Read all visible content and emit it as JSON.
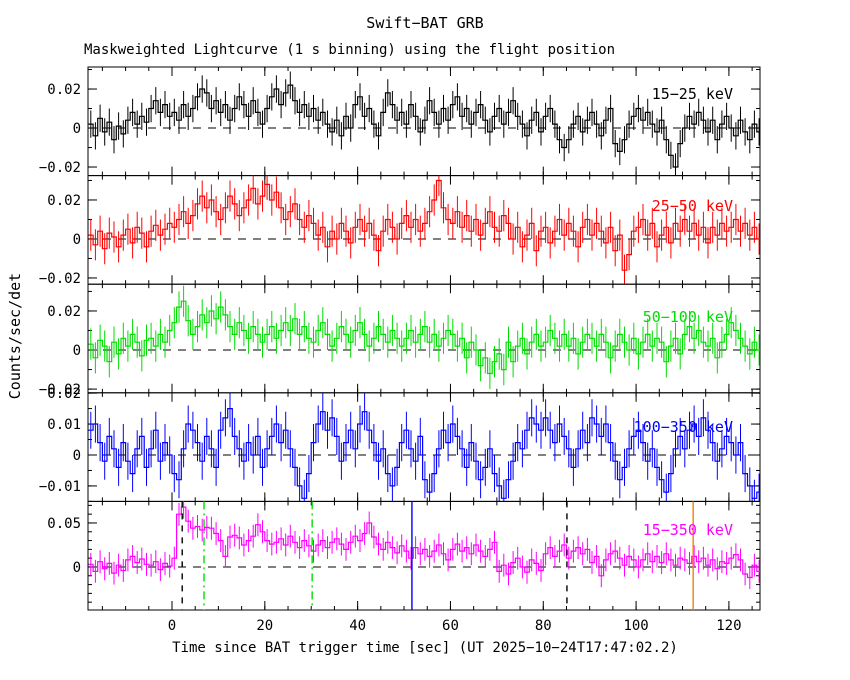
{
  "title": "Swift−BAT GRB",
  "subtitle": "Maskweighted Lightcurve (1 s binning) using the flight position",
  "xlabel": "Time since BAT trigger time [sec] (UT 2025−10−24T17:47:02.2)",
  "ylabel": "Counts/sec/det",
  "chart_data": {
    "type": "line",
    "style": "histogram-step-with-error-bars",
    "binning_sec": 1,
    "x_start": -18,
    "xlim": [
      -18.1,
      126.7
    ],
    "xticks_major": [
      0,
      20,
      40,
      60,
      80,
      100,
      120
    ],
    "xtick_labels": [
      "0",
      "20",
      "40",
      "60",
      "80",
      "100",
      "120"
    ],
    "xtick_minor_step": 5,
    "value_unit": "counts/sec/det",
    "value_scale": 0.001,
    "panels": [
      {
        "label": "15−25 keV",
        "color": "#000000",
        "ylim": [
          -0.0244,
          0.0313
        ],
        "yticks": [
          {
            "v": -0.02,
            "label": "−0.02"
          },
          {
            "v": 0,
            "label": "0"
          },
          {
            "v": 0.02,
            "label": "0.02"
          }
        ],
        "ytick_minor_step": 0.01,
        "err_milli": 7,
        "values_milli": [
          2,
          -4,
          5,
          -2,
          3,
          -6,
          1,
          -3,
          4,
          8,
          2,
          6,
          3,
          10,
          14,
          8,
          12,
          6,
          8,
          4,
          12,
          6,
          10,
          16,
          20,
          18,
          10,
          14,
          8,
          12,
          4,
          10,
          16,
          12,
          6,
          14,
          8,
          2,
          10,
          16,
          20,
          12,
          18,
          22,
          14,
          8,
          12,
          6,
          10,
          4,
          8,
          2,
          -2,
          4,
          -4,
          6,
          0,
          12,
          16,
          6,
          10,
          2,
          -4,
          8,
          18,
          12,
          4,
          8,
          2,
          12,
          6,
          -2,
          4,
          14,
          8,
          2,
          10,
          4,
          12,
          16,
          6,
          10,
          2,
          8,
          12,
          4,
          -2,
          6,
          10,
          2,
          8,
          14,
          6,
          2,
          -4,
          4,
          8,
          -2,
          6,
          10,
          2,
          -6,
          -10,
          -6,
          2,
          6,
          -2,
          4,
          8,
          2,
          -4,
          4,
          10,
          -8,
          -12,
          -6,
          2,
          6,
          10,
          4,
          8,
          2,
          -2,
          4,
          -6,
          -14,
          -20,
          -8,
          0,
          6,
          2,
          8,
          4,
          -2,
          4,
          -6,
          2,
          6,
          0,
          -4,
          4,
          -2,
          -6,
          2,
          -2
        ]
      },
      {
        "label": "25−50 keV",
        "color": "#ff0000",
        "ylim": [
          -0.0232,
          0.0325
        ],
        "yticks": [
          {
            "v": -0.02,
            "label": "−0.02"
          },
          {
            "v": 0,
            "label": "0"
          },
          {
            "v": 0.02,
            "label": "0.02"
          }
        ],
        "ytick_minor_step": 0.01,
        "err_milli": 8,
        "values_milli": [
          2,
          -3,
          4,
          -5,
          3,
          1,
          -4,
          2,
          5,
          -2,
          6,
          3,
          -4,
          4,
          7,
          2,
          5,
          8,
          6,
          10,
          14,
          8,
          12,
          18,
          22,
          16,
          20,
          14,
          10,
          16,
          22,
          18,
          12,
          16,
          20,
          26,
          18,
          22,
          28,
          20,
          24,
          16,
          10,
          14,
          18,
          10,
          6,
          12,
          8,
          2,
          6,
          -4,
          4,
          0,
          8,
          4,
          -2,
          6,
          10,
          4,
          8,
          2,
          -6,
          4,
          10,
          6,
          0,
          8,
          12,
          6,
          10,
          4,
          8,
          14,
          20,
          30,
          16,
          10,
          8,
          14,
          6,
          12,
          4,
          10,
          2,
          8,
          14,
          6,
          4,
          12,
          8,
          0,
          6,
          -4,
          2,
          8,
          -6,
          4,
          6,
          -2,
          4,
          10,
          2,
          8,
          4,
          -4,
          6,
          10,
          2,
          8,
          4,
          -2,
          6,
          -6,
          2,
          -16,
          -8,
          4,
          6,
          10,
          2,
          8,
          -4,
          2,
          6,
          -2,
          8,
          4,
          10,
          4,
          8,
          2,
          6,
          -2,
          6,
          2,
          8,
          4,
          6,
          10,
          4,
          8,
          2,
          6,
          0
        ]
      },
      {
        "label": "50−100 keV",
        "color": "#00dd00",
        "ylim": [
          -0.0219,
          0.0337
        ],
        "yticks": [
          {
            "v": -0.02,
            "label": "−0.02"
          },
          {
            "v": 0,
            "label": "0"
          },
          {
            "v": 0.02,
            "label": "0.02"
          }
        ],
        "ytick_minor_step": 0.01,
        "err_milli": 8,
        "values_milli": [
          3,
          -4,
          5,
          2,
          -6,
          4,
          -2,
          6,
          2,
          8,
          4,
          -3,
          5,
          6,
          2,
          8,
          4,
          10,
          14,
          22,
          25,
          15,
          8,
          12,
          18,
          14,
          20,
          16,
          22,
          18,
          12,
          8,
          14,
          10,
          6,
          12,
          8,
          4,
          8,
          12,
          6,
          10,
          14,
          10,
          16,
          8,
          12,
          6,
          4,
          10,
          14,
          8,
          2,
          6,
          12,
          8,
          4,
          10,
          14,
          8,
          2,
          6,
          12,
          8,
          4,
          10,
          6,
          2,
          6,
          10,
          4,
          8,
          12,
          4,
          8,
          2,
          6,
          10,
          8,
          2,
          6,
          -4,
          4,
          0,
          -8,
          -4,
          -12,
          -6,
          -2,
          -10,
          4,
          -6,
          2,
          6,
          -2,
          4,
          8,
          2,
          4,
          10,
          6,
          2,
          8,
          2,
          6,
          -2,
          4,
          8,
          6,
          2,
          8,
          4,
          -4,
          2,
          8,
          4,
          0,
          6,
          -2,
          4,
          8,
          2,
          6,
          4,
          -6,
          2,
          6,
          -2,
          8,
          12,
          6,
          10,
          4,
          2,
          6,
          -4,
          4,
          8,
          14,
          10,
          6,
          2,
          -2,
          4,
          0
        ]
      },
      {
        "label": "100−350 keV",
        "color": "#0000ff",
        "ylim": [
          -0.015,
          0.0201
        ],
        "yticks": [
          {
            "v": -0.01,
            "label": "−0.01"
          },
          {
            "v": 0,
            "label": "0"
          },
          {
            "v": 0.01,
            "label": "0.01"
          },
          {
            "v": 0.02,
            "label": "0.02"
          }
        ],
        "ytick_minor_step": 0.005,
        "err_milli": 6,
        "values_milli": [
          8,
          10,
          4,
          -2,
          6,
          2,
          -4,
          4,
          -2,
          -6,
          2,
          6,
          -4,
          2,
          8,
          -2,
          4,
          0,
          -6,
          -8,
          2,
          10,
          8,
          4,
          -2,
          6,
          2,
          -4,
          8,
          12,
          15,
          6,
          2,
          -2,
          4,
          0,
          6,
          -4,
          2,
          6,
          10,
          4,
          8,
          2,
          -4,
          -10,
          -14,
          -6,
          4,
          10,
          14,
          8,
          12,
          6,
          -2,
          4,
          8,
          2,
          10,
          14,
          8,
          4,
          -2,
          2,
          -6,
          -10,
          -4,
          4,
          8,
          2,
          -2,
          6,
          -8,
          -12,
          -6,
          2,
          8,
          4,
          10,
          6,
          2,
          -4,
          4,
          -2,
          -8,
          -4,
          2,
          -6,
          -10,
          -14,
          -8,
          -2,
          4,
          2,
          8,
          12,
          10,
          8,
          12,
          8,
          4,
          10,
          6,
          2,
          -4,
          2,
          8,
          4,
          12,
          10,
          6,
          10,
          4,
          -2,
          -8,
          -4,
          2,
          6,
          8,
          4,
          -2,
          2,
          -4,
          -8,
          -12,
          -6,
          2,
          6,
          2,
          8,
          10,
          6,
          12,
          8,
          4,
          -2,
          2,
          6,
          4,
          0,
          4,
          -6,
          -10,
          -14,
          -12
        ]
      },
      {
        "label": "15−350 keV",
        "color": "#ff00ff",
        "ylim": [
          -0.0489,
          0.0745
        ],
        "yticks": [
          {
            "v": 0,
            "label": "0"
          },
          {
            "v": 0.05,
            "label": "0.05"
          }
        ],
        "ytick_minor_step": 0.01,
        "err_milli": 13,
        "values_milli": [
          3,
          -5,
          6,
          -2,
          4,
          -7,
          2,
          -4,
          8,
          12,
          5,
          9,
          3,
          2,
          6,
          -3,
          4,
          1,
          10,
          60,
          68,
          52,
          44,
          46,
          42,
          45,
          44,
          38,
          30,
          12,
          34,
          36,
          33,
          25,
          30,
          35,
          48,
          40,
          30,
          26,
          28,
          32,
          25,
          35,
          28,
          22,
          30,
          24,
          18,
          25,
          30,
          22,
          28,
          32,
          26,
          20,
          28,
          35,
          30,
          38,
          50,
          34,
          26,
          20,
          28,
          22,
          16,
          24,
          18,
          10,
          22,
          15,
          20,
          12,
          18,
          25,
          15,
          8,
          20,
          26,
          18,
          22,
          15,
          25,
          18,
          12,
          20,
          28,
          -5,
          2,
          -8,
          5,
          10,
          0,
          -6,
          8,
          4,
          -4,
          15,
          22,
          12,
          18,
          25,
          10,
          18,
          22,
          15,
          20,
          5,
          12,
          -10,
          8,
          15,
          18,
          10,
          2,
          12,
          8,
          0,
          8,
          15,
          6,
          12,
          5,
          15,
          8,
          2,
          10,
          8,
          4,
          12,
          6,
          10,
          2,
          8,
          -2,
          6,
          4,
          10,
          14,
          8,
          -8,
          -12,
          2,
          -5
        ],
        "vlines": [
          {
            "t": 2.2,
            "color": "#000000",
            "style": "dashed"
          },
          {
            "t": 6.9,
            "color": "#00dd00",
            "style": "dash-dot"
          },
          {
            "t": 30.2,
            "color": "#00dd00",
            "style": "dash-dot"
          },
          {
            "t": 51.7,
            "color": "#0000ff",
            "style": "solid"
          },
          {
            "t": 85.1,
            "color": "#000000",
            "style": "dashed"
          },
          {
            "t": 112.3,
            "color": "#ee8500",
            "style": "solid"
          }
        ]
      }
    ]
  }
}
